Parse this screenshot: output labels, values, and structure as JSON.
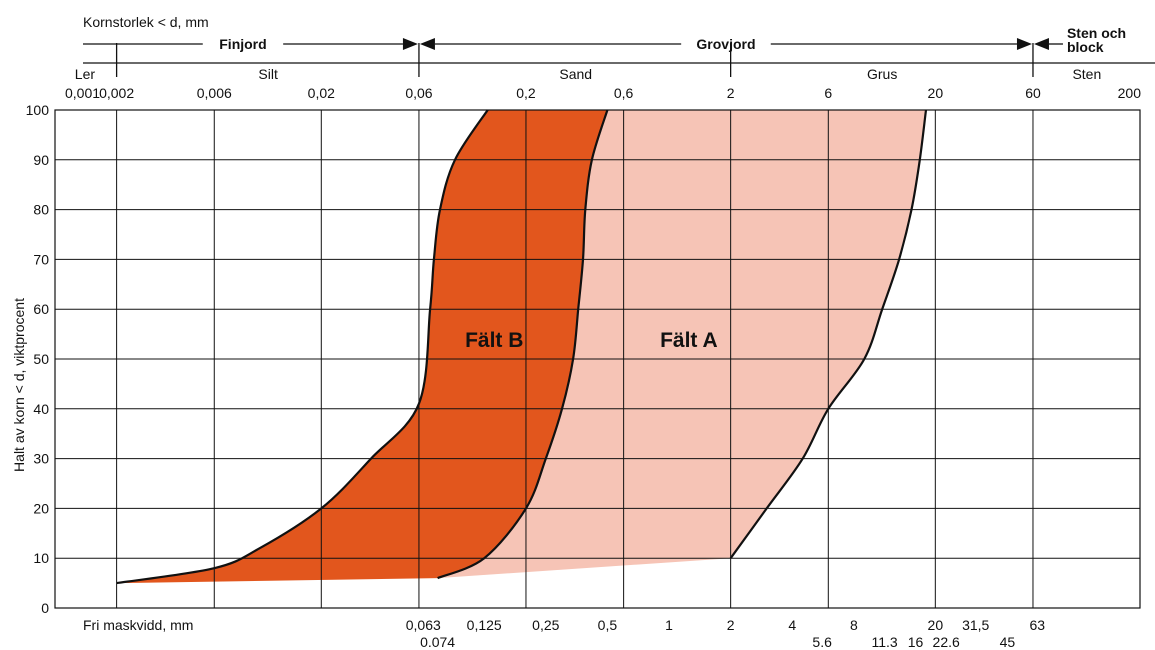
{
  "chart_data": {
    "type": "area",
    "top_axis": {
      "title": "Kornstorlek < d, mm",
      "groups": [
        {
          "label": "Finjord",
          "from": 0.002,
          "to": 0.06
        },
        {
          "label": "Grovjord",
          "from": 0.06,
          "to": 60
        },
        {
          "label": "Sten och block",
          "from": 60,
          "to": 200
        }
      ],
      "fractions": [
        {
          "label": "Ler",
          "at": 0.0014
        },
        {
          "label": "Silt",
          "at": 0.011
        },
        {
          "label": "Sand",
          "at": 0.35
        },
        {
          "label": "Grus",
          "at": 11
        },
        {
          "label": "Sten",
          "at": 110
        }
      ],
      "ticks": [
        "0,001",
        "0,002",
        "0,006",
        "0,02",
        "0,06",
        "0,2",
        "0,6",
        "2",
        "6",
        "20",
        "60",
        "200"
      ],
      "tick_values": [
        0.001,
        0.002,
        0.006,
        0.02,
        0.06,
        0.2,
        0.6,
        2,
        6,
        20,
        60,
        200
      ],
      "group_boundaries": [
        0.002,
        0.06,
        2,
        60
      ]
    },
    "bottom_axis": {
      "title": "Fri maskvidd, mm",
      "ticks_row1": [
        {
          "label": "0,063",
          "value": 0.063
        },
        {
          "label": "0,125",
          "value": 0.125
        },
        {
          "label": "0,25",
          "value": 0.25
        },
        {
          "label": "0,5",
          "value": 0.5
        },
        {
          "label": "1",
          "value": 1
        },
        {
          "label": "2",
          "value": 2
        },
        {
          "label": "4",
          "value": 4
        },
        {
          "label": "8",
          "value": 8
        },
        {
          "label": "20",
          "value": 20
        },
        {
          "label": "31,5",
          "value": 31.5
        },
        {
          "label": "63",
          "value": 63
        }
      ],
      "ticks_row2": [
        {
          "label": "0.074",
          "value": 0.074
        },
        {
          "label": "5.6",
          "value": 5.6
        },
        {
          "label": "11.3",
          "value": 11.3
        },
        {
          "label": "16",
          "value": 16
        },
        {
          "label": "22.6",
          "value": 22.6
        },
        {
          "label": "45",
          "value": 45
        }
      ]
    },
    "y_axis": {
      "label": "Halt av korn < d, viktprocent",
      "ticks": [
        "0",
        "10",
        "20",
        "30",
        "40",
        "50",
        "60",
        "70",
        "80",
        "90",
        "100"
      ],
      "ylim": [
        0,
        100
      ]
    },
    "xlim": [
      0.001,
      200
    ],
    "x_scale": "log",
    "grid": true,
    "series": [
      {
        "name": "Fält A",
        "color": "#f6c4b6",
        "label_at": {
          "x": 1.25,
          "y": 54
        },
        "lower": [
          [
            0.063,
            6
          ],
          [
            0.3,
            8.5
          ],
          [
            2,
            10
          ],
          [
            3,
            20
          ],
          [
            4.5,
            30
          ],
          [
            6,
            40
          ],
          [
            9,
            50
          ],
          [
            11,
            60
          ],
          [
            13.3,
            70
          ],
          [
            15.3,
            80
          ],
          [
            16.8,
            90
          ],
          [
            18,
            100
          ]
        ],
        "upper": [
          [
            0.074,
            6
          ],
          [
            0.125,
            10
          ],
          [
            0.2,
            20
          ],
          [
            0.25,
            30
          ],
          [
            0.3,
            40
          ],
          [
            0.34,
            50
          ],
          [
            0.36,
            60
          ],
          [
            0.38,
            70
          ],
          [
            0.39,
            80
          ],
          [
            0.42,
            90
          ],
          [
            0.5,
            100
          ]
        ]
      },
      {
        "name": "Fält B",
        "color": "#e2561d",
        "label_at": {
          "x": 0.14,
          "y": 54
        },
        "lower": [
          [
            0.074,
            6
          ],
          [
            0.125,
            10
          ],
          [
            0.2,
            20
          ],
          [
            0.25,
            30
          ],
          [
            0.3,
            40
          ],
          [
            0.34,
            50
          ],
          [
            0.36,
            60
          ],
          [
            0.38,
            70
          ],
          [
            0.39,
            80
          ],
          [
            0.42,
            90
          ],
          [
            0.5,
            100
          ]
        ],
        "upper": [
          [
            0.002,
            5
          ],
          [
            0.006,
            8
          ],
          [
            0.01,
            12
          ],
          [
            0.02,
            20
          ],
          [
            0.035,
            30
          ],
          [
            0.06,
            41
          ],
          [
            0.068,
            60
          ],
          [
            0.071,
            70
          ],
          [
            0.076,
            80
          ],
          [
            0.09,
            90
          ],
          [
            0.13,
            100
          ]
        ]
      }
    ],
    "shared_bottom_edge": [
      [
        0.002,
        5
      ],
      [
        0.074,
        6
      ],
      [
        2,
        10
      ]
    ]
  }
}
